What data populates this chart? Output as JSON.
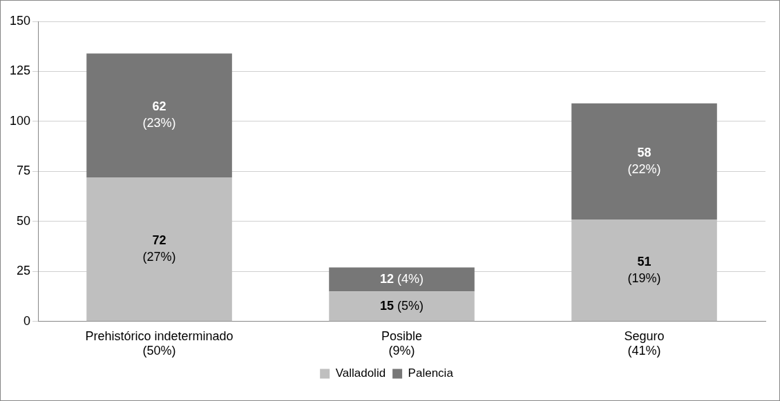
{
  "chart_data": {
    "type": "bar",
    "stacked": true,
    "categories": [
      "Prehistórico indeterminado\n(50%)",
      "Posible\n(9%)",
      "Seguro\n(41%)"
    ],
    "series": [
      {
        "name": "Valladolid",
        "color": "#bfbfbf",
        "values": [
          72,
          15,
          51
        ],
        "value_labels": [
          "72 (27%)",
          "15 (5%)",
          "51 (19%)"
        ]
      },
      {
        "name": "Palencia",
        "color": "#777777",
        "values": [
          62,
          12,
          58
        ],
        "value_labels": [
          "62 (23%)",
          "12 (4%)",
          "58 (22%)"
        ]
      }
    ],
    "ylim": [
      0,
      150
    ],
    "yticks": [
      0,
      25,
      50,
      75,
      100,
      125,
      150
    ],
    "grid": "y",
    "legend": "bottom"
  }
}
